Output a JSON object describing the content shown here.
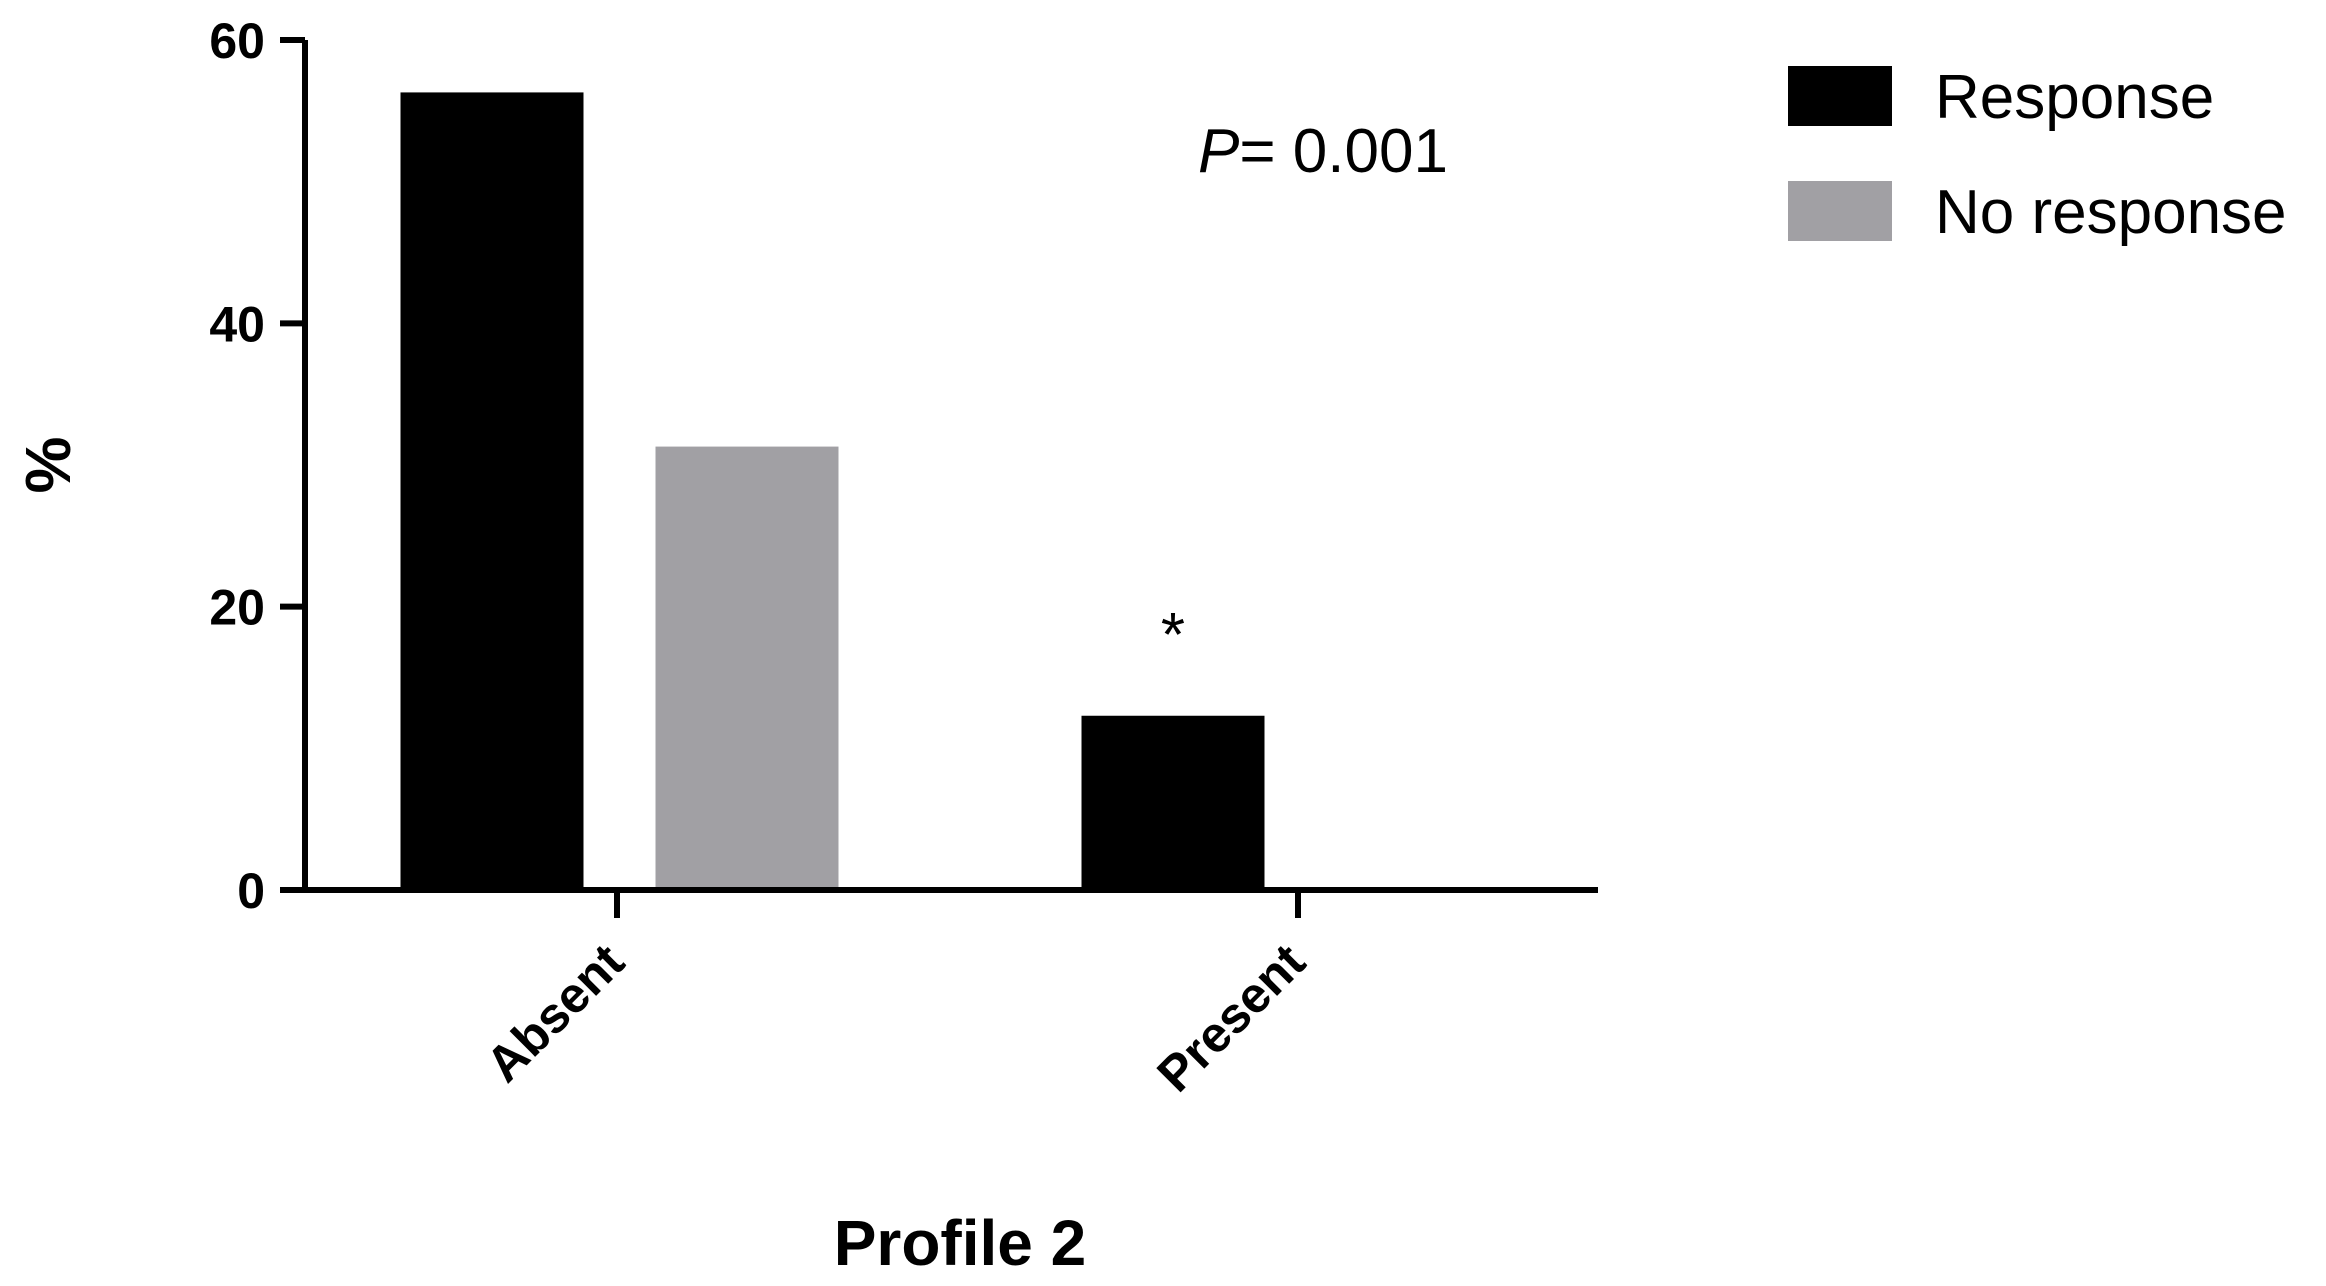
{
  "chart_data": {
    "type": "bar",
    "categories": [
      "Absent",
      "Present"
    ],
    "series": [
      {
        "name": "Response",
        "values": [
          56.3,
          12.3
        ],
        "color": "#000000"
      },
      {
        "name": "No response",
        "values": [
          31.3,
          0
        ],
        "color": "#a1a0a4"
      }
    ],
    "xlabel": "Profile 2",
    "ylabel": "%",
    "ylim": [
      0,
      60
    ],
    "yticks": [
      0,
      20,
      40,
      60
    ],
    "grid": false,
    "legend_position": "top-right",
    "annotations": {
      "p_value_symbol": "P",
      "p_value_text": "= 0.001",
      "significance_marker": "*"
    }
  }
}
